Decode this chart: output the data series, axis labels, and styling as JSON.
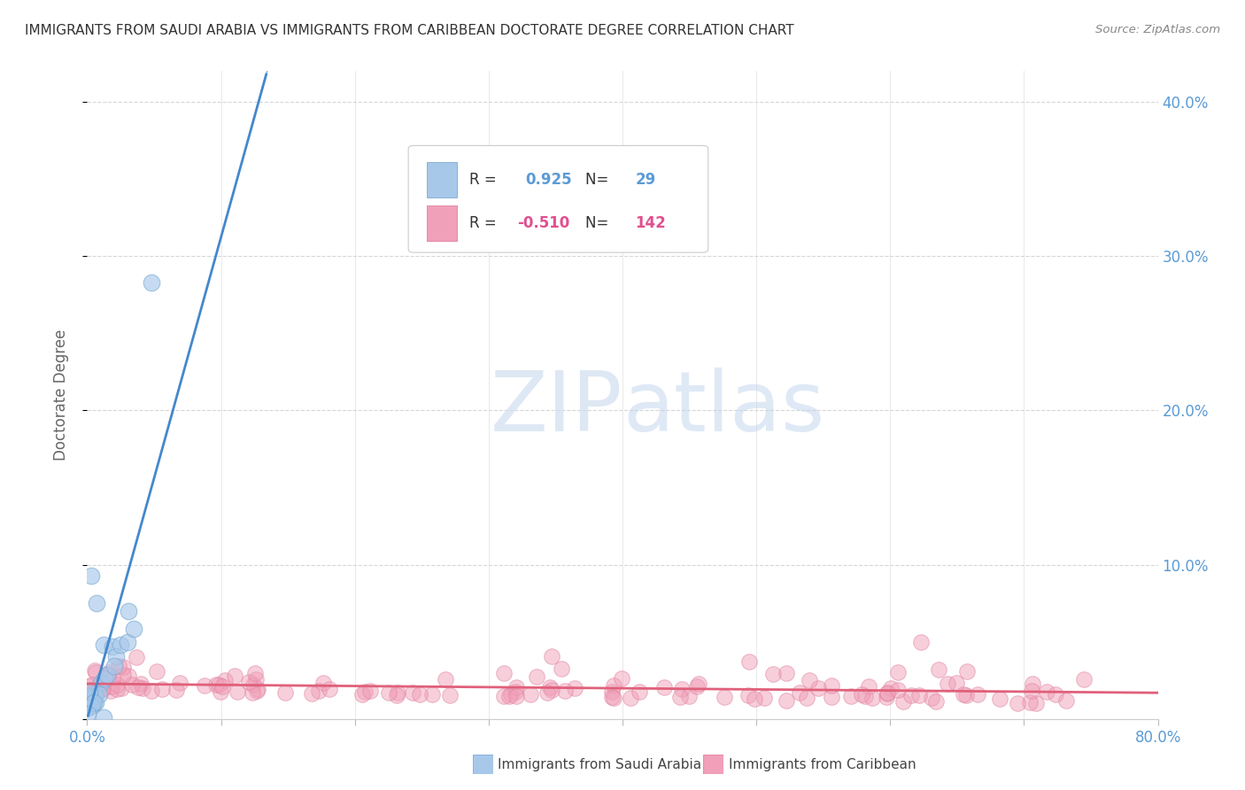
{
  "title": "IMMIGRANTS FROM SAUDI ARABIA VS IMMIGRANTS FROM CARIBBEAN DOCTORATE DEGREE CORRELATION CHART",
  "source": "Source: ZipAtlas.com",
  "ylabel": "Doctorate Degree",
  "series1_label": "Immigrants from Saudi Arabia",
  "series1_color": "#A8C8EA",
  "series1_edge_color": "#7AAAD4",
  "series1_line_color": "#4488CC",
  "series1_R": 0.925,
  "series1_N": 29,
  "series2_label": "Immigrants from Caribbean",
  "series2_color": "#F0A0B8",
  "series2_edge_color": "#E080A0",
  "series2_line_color": "#E0607A",
  "series2_R": -0.51,
  "series2_N": 142,
  "xmin": 0.0,
  "xmax": 0.8,
  "ymin": 0.0,
  "ymax": 0.42,
  "yticks": [
    0.0,
    0.1,
    0.2,
    0.3,
    0.4
  ],
  "ytick_labels": [
    "",
    "10.0%",
    "20.0%",
    "30.0%",
    "40.0%"
  ],
  "background_color": "#ffffff",
  "grid_color": "#cccccc",
  "title_color": "#333333",
  "axis_label_color": "#5B9BD5",
  "watermark_text": "ZIPatlas",
  "watermark_color": "#D0DFF0"
}
